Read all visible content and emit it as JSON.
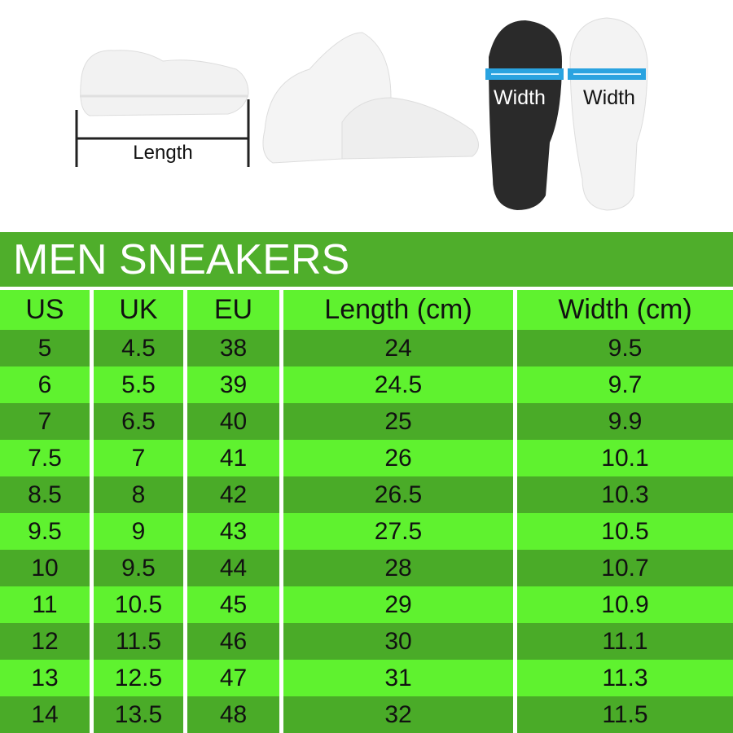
{
  "illustrations": {
    "side_label": "Length",
    "sole_label_left": "Width",
    "sole_label_right": "Width",
    "arrow_color": "#2aa3e0"
  },
  "title": "MEN SNEAKERS",
  "colors": {
    "title_band": "#4fae2b",
    "row_dark": "#4aab28",
    "row_light": "#5ff22f"
  },
  "table": {
    "headers": [
      "US",
      "UK",
      "EU",
      "Length (cm)",
      "Width (cm)"
    ],
    "rows": [
      [
        "5",
        "4.5",
        "38",
        "24",
        "9.5"
      ],
      [
        "6",
        "5.5",
        "39",
        "24.5",
        "9.7"
      ],
      [
        "7",
        "6.5",
        "40",
        "25",
        "9.9"
      ],
      [
        "7.5",
        "7",
        "41",
        "26",
        "10.1"
      ],
      [
        "8.5",
        "8",
        "42",
        "26.5",
        "10.3"
      ],
      [
        "9.5",
        "9",
        "43",
        "27.5",
        "10.5"
      ],
      [
        "10",
        "9.5",
        "44",
        "28",
        "10.7"
      ],
      [
        "11",
        "10.5",
        "45",
        "29",
        "10.9"
      ],
      [
        "12",
        "11.5",
        "46",
        "30",
        "11.1"
      ],
      [
        "13",
        "12.5",
        "47",
        "31",
        "11.3"
      ],
      [
        "14",
        "13.5",
        "48",
        "32",
        "11.5"
      ]
    ]
  }
}
